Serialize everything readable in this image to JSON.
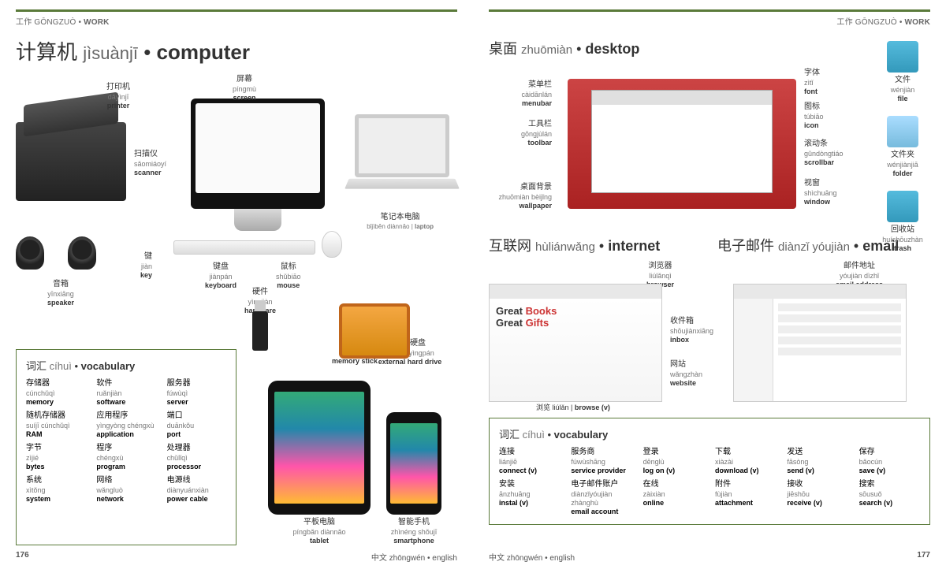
{
  "header": {
    "cn": "工作",
    "py": "GŌNGZUÒ",
    "en": "WORK"
  },
  "footer": {
    "lang": "中文 zhōngwén • english",
    "page_left": "176",
    "page_right": "177"
  },
  "left": {
    "title": {
      "cn": "计算机",
      "py": "jìsuànjī",
      "en": "computer"
    },
    "labels": {
      "printer": {
        "cn": "打印机",
        "py": "dǎyìnjī",
        "en": "printer"
      },
      "screen": {
        "cn": "屏幕",
        "py": "píngmù",
        "en": "screen"
      },
      "scanner": {
        "cn": "扫描仪",
        "py": "sǎomiáoyí",
        "en": "scanner"
      },
      "laptop": {
        "cn": "笔记本电脑",
        "py": "bǐjìběn diànnǎo",
        "en": "laptop"
      },
      "key": {
        "cn": "键",
        "py": "jiàn",
        "en": "key"
      },
      "keyboard": {
        "cn": "键盘",
        "py": "jiànpán",
        "en": "keyboard"
      },
      "mouse": {
        "cn": "鼠标",
        "py": "shǔbiāo",
        "en": "mouse"
      },
      "speaker": {
        "cn": "音箱",
        "py": "yīnxiāng",
        "en": "speaker"
      },
      "hardware": {
        "cn": "硬件",
        "py": "yìngjiàn",
        "en": "hardware"
      },
      "memstick": {
        "cn": "记忆棒",
        "py": "jìyì bàng",
        "en": "memory stick"
      },
      "exthdd": {
        "cn": "移动硬盘",
        "py": "yídòng yìngpán",
        "en": "external hard drive"
      },
      "tablet": {
        "cn": "平板电脑",
        "py": "píngbǎn diànnǎo",
        "en": "tablet"
      },
      "phone": {
        "cn": "智能手机",
        "py": "zhìnéng shǒujī",
        "en": "smartphone"
      }
    },
    "vocab_title": {
      "cn": "词汇",
      "py": "cíhuì",
      "en": "vocabulary"
    },
    "vocab": [
      {
        "cn": "存储器",
        "py": "cúnchǔqì",
        "en": "memory"
      },
      {
        "cn": "软件",
        "py": "ruǎnjiàn",
        "en": "software"
      },
      {
        "cn": "服务器",
        "py": "fúwùqì",
        "en": "server"
      },
      {
        "cn": "随机存储器",
        "py": "suíjī cúnchǔqì",
        "en": "RAM"
      },
      {
        "cn": "应用程序",
        "py": "yìngyòng chéngxù",
        "en": "application"
      },
      {
        "cn": "端口",
        "py": "duānkǒu",
        "en": "port"
      },
      {
        "cn": "字节",
        "py": "zìjié",
        "en": "bytes"
      },
      {
        "cn": "程序",
        "py": "chéngxù",
        "en": "program"
      },
      {
        "cn": "处理器",
        "py": "chǔlǐqì",
        "en": "processor"
      },
      {
        "cn": "系统",
        "py": "xìtǒng",
        "en": "system"
      },
      {
        "cn": "网络",
        "py": "wǎngluò",
        "en": "network"
      },
      {
        "cn": "电源线",
        "py": "diànyuánxiàn",
        "en": "power cable"
      }
    ]
  },
  "right": {
    "title1": {
      "cn": "桌面",
      "py": "zhuōmiàn",
      "en": "desktop"
    },
    "title2": {
      "cn": "互联网",
      "py": "hùliánwǎng",
      "en": "internet"
    },
    "title3": {
      "cn": "电子邮件",
      "py": "diànzǐ yóujiàn",
      "en": "email"
    },
    "labels": {
      "menubar": {
        "cn": "菜单栏",
        "py": "càidānlán",
        "en": "menubar"
      },
      "toolbar": {
        "cn": "工具栏",
        "py": "gōngjùlán",
        "en": "toolbar"
      },
      "wallpaper": {
        "cn": "桌面背景",
        "py": "zhuōmiàn bèijǐng",
        "en": "wallpaper"
      },
      "font": {
        "cn": "字体",
        "py": "zìtǐ",
        "en": "font"
      },
      "icon": {
        "cn": "图标",
        "py": "túbiāo",
        "en": "icon"
      },
      "scrollbar": {
        "cn": "滚动条",
        "py": "gǔndòngtiáo",
        "en": "scrollbar"
      },
      "window": {
        "cn": "视窗",
        "py": "shìchuāng",
        "en": "window"
      },
      "file": {
        "cn": "文件",
        "py": "wénjiàn",
        "en": "file"
      },
      "folder": {
        "cn": "文件夹",
        "py": "wénjiànjiā",
        "en": "folder"
      },
      "trash": {
        "cn": "回收站",
        "py": "huíshōuzhàn",
        "en": "trash"
      },
      "browser": {
        "cn": "浏览器",
        "py": "liúlǎnqì",
        "en": "browser"
      },
      "inbox": {
        "cn": "收件箱",
        "py": "shōujiànxiāng",
        "en": "inbox"
      },
      "website": {
        "cn": "网站",
        "py": "wǎngzhàn",
        "en": "website"
      },
      "browse": {
        "cn": "浏览",
        "py": "liúlǎn",
        "en": "browse (v)"
      },
      "emailaddr": {
        "cn": "邮件地址",
        "py": "yóujiàn dìzhǐ",
        "en": "email address"
      }
    },
    "banner": {
      "t1": "Great ",
      "t2": "Books",
      "t3": "Great ",
      "t4": "Gifts"
    },
    "vocab_title": {
      "cn": "词汇",
      "py": "cíhuì",
      "en": "vocabulary"
    },
    "vocab": [
      {
        "cn": "连接",
        "py": "liánjiē",
        "en": "connect (v)"
      },
      {
        "cn": "服务商",
        "py": "fúwùshāng",
        "en": "service provider"
      },
      {
        "cn": "登录",
        "py": "dēnglù",
        "en": "log on (v)"
      },
      {
        "cn": "下载",
        "py": "xiàzài",
        "en": "download (v)"
      },
      {
        "cn": "发送",
        "py": "fāsòng",
        "en": "send (v)"
      },
      {
        "cn": "保存",
        "py": "bǎocún",
        "en": "save (v)"
      },
      {
        "cn": "安装",
        "py": "ānzhuāng",
        "en": "instal (v)"
      },
      {
        "cn": "电子邮件账户",
        "py": "diànzǐyóujiàn zhànghù",
        "en": "email account"
      },
      {
        "cn": "在线",
        "py": "zàixiàn",
        "en": "online"
      },
      {
        "cn": "附件",
        "py": "fùjiàn",
        "en": "attachment"
      },
      {
        "cn": "接收",
        "py": "jiēshōu",
        "en": "receive (v)"
      },
      {
        "cn": "搜索",
        "py": "sōusuǒ",
        "en": "search (v)"
      }
    ]
  }
}
